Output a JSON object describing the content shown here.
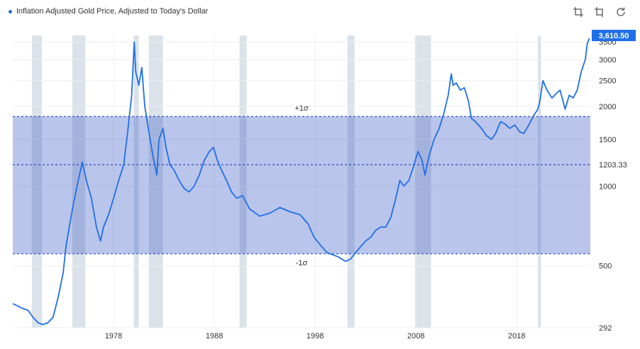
{
  "toolbar": {
    "icons": [
      "crop-icon",
      "crop-alt-icon",
      "reset-zoom-icon"
    ]
  },
  "colors": {
    "line": "#1f6fe8",
    "band": "#3f5fc8",
    "recession": "#d5dde6",
    "last_value_bg": "#1f6fe8",
    "mean_line": "#2b50c8"
  },
  "chart_data": {
    "type": "line",
    "title": "",
    "legend": [
      "Inflation Adjusted Gold Price, Adjusted to Today's Dollar"
    ],
    "legend_position": "top-left",
    "xlabel": "",
    "ylabel": "",
    "y_scale": "log",
    "ylim": [
      292,
      3700
    ],
    "xlim": [
      1968,
      2025.3
    ],
    "x_ticks": [
      1978,
      1988,
      1998,
      2008,
      2018
    ],
    "y_ticks": [
      292,
      500,
      1000,
      1500,
      2000,
      2500,
      3000,
      3500
    ],
    "last_value": "3,610.50",
    "mean": 1203.33,
    "mean_label": "1203.33",
    "plus_sigma": 1830,
    "minus_sigma": 555,
    "plus_sigma_label": "+1σ",
    "minus_sigma_label": "-1σ",
    "recessions": [
      [
        1969.9,
        1970.9
      ],
      [
        1973.9,
        1975.2
      ],
      [
        1980.0,
        1980.5
      ],
      [
        1981.5,
        1982.9
      ],
      [
        1990.5,
        1991.2
      ],
      [
        2001.2,
        2001.9
      ],
      [
        2007.9,
        2009.5
      ],
      [
        2020.1,
        2020.4
      ]
    ],
    "series": [
      {
        "name": "Inflation Adjusted Gold Price, Adjusted to Today's Dollar",
        "x": [
          1968.0,
          1969.0,
          1969.5,
          1970.0,
          1970.5,
          1971.0,
          1971.5,
          1972.0,
          1972.5,
          1973.0,
          1973.3,
          1973.6,
          1974.0,
          1974.5,
          1974.9,
          1975.3,
          1975.8,
          1976.3,
          1976.7,
          1977.0,
          1977.5,
          1978.0,
          1978.5,
          1979.0,
          1979.4,
          1979.8,
          1980.05,
          1980.2,
          1980.5,
          1980.8,
          1981.1,
          1981.5,
          1981.9,
          1982.3,
          1982.5,
          1982.9,
          1983.2,
          1983.6,
          1984.0,
          1984.5,
          1985.0,
          1985.5,
          1986.0,
          1986.5,
          1987.0,
          1987.5,
          1987.9,
          1988.3,
          1988.7,
          1989.2,
          1989.7,
          1990.2,
          1990.8,
          1991.5,
          1992.5,
          1993.5,
          1994.5,
          1995.5,
          1996.5,
          1997.3,
          1997.9,
          1998.5,
          1999.2,
          1999.8,
          2000.3,
          2001.0,
          2001.5,
          2002.0,
          2002.5,
          2003.0,
          2003.5,
          2004.0,
          2004.5,
          2005.0,
          2005.5,
          2006.0,
          2006.4,
          2006.8,
          2007.3,
          2007.8,
          2008.2,
          2008.6,
          2008.9,
          2009.3,
          2009.8,
          2010.3,
          2010.8,
          2011.2,
          2011.5,
          2011.7,
          2012.0,
          2012.4,
          2012.8,
          2013.2,
          2013.5,
          2013.9,
          2014.5,
          2015.0,
          2015.5,
          2015.9,
          2016.4,
          2016.8,
          2017.3,
          2017.8,
          2018.3,
          2018.7,
          2019.2,
          2019.7,
          2020.1,
          2020.3,
          2020.6,
          2021.0,
          2021.5,
          2022.0,
          2022.3,
          2022.8,
          2023.2,
          2023.6,
          2024.0,
          2024.4,
          2024.8,
          2025.0,
          2025.2
        ],
        "values": [
          360,
          345,
          340,
          320,
          305,
          300,
          305,
          320,
          380,
          470,
          600,
          700,
          850,
          1050,
          1230,
          1050,
          900,
          700,
          620,
          700,
          780,
          900,
          1050,
          1200,
          1600,
          2200,
          3500,
          2700,
          2400,
          2800,
          2000,
          1600,
          1300,
          1100,
          1500,
          1650,
          1400,
          1200,
          1150,
          1050,
          980,
          950,
          1000,
          1100,
          1250,
          1350,
          1400,
          1250,
          1150,
          1050,
          950,
          900,
          920,
          820,
          770,
          790,
          830,
          800,
          780,
          720,
          640,
          600,
          560,
          550,
          540,
          520,
          530,
          560,
          590,
          620,
          640,
          680,
          700,
          700,
          760,
          900,
          1050,
          1000,
          1050,
          1200,
          1350,
          1250,
          1100,
          1300,
          1500,
          1650,
          1900,
          2200,
          2650,
          2400,
          2450,
          2300,
          2350,
          2100,
          1800,
          1750,
          1650,
          1550,
          1500,
          1580,
          1750,
          1720,
          1650,
          1700,
          1600,
          1580,
          1700,
          1850,
          1950,
          2100,
          2500,
          2300,
          2150,
          2250,
          2300,
          1950,
          2200,
          2150,
          2300,
          2700,
          3000,
          3450,
          3610
        ]
      }
    ]
  }
}
